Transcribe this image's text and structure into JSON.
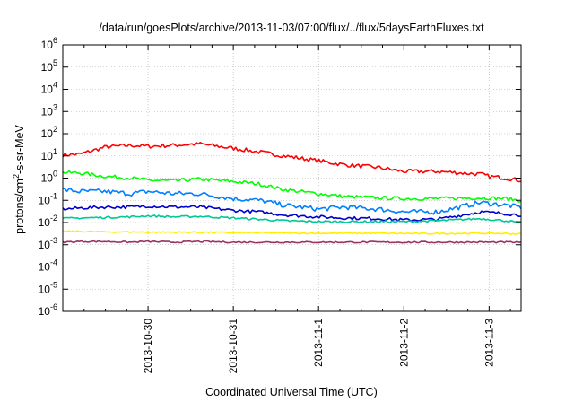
{
  "chart_data": {
    "type": "line",
    "title": "/data/run/goesPlots/archive/2013-11-03/07:00/flux/../flux/5daysEarthFluxes.txt",
    "xlabel": "Coordinated Universal Time (UTC)",
    "ylabel": {
      "prefix": "protons/cm",
      "sup": "2",
      "suffix": "-s-sr-MeV"
    },
    "x_axis": {
      "unit": "day",
      "range": [
        "2013-10-29 00:00",
        "2013-11-03 09:00"
      ],
      "ticks": [
        "2013-10-30",
        "2013-10-31",
        "2013-11-1",
        "2013-11-2",
        "2013-11-3"
      ]
    },
    "y_axis": {
      "scale": "log",
      "range": [
        1e-06,
        1000000.0
      ],
      "tick_base": "10",
      "tick_exponents": [
        "-6",
        "-5",
        "-4",
        "-3",
        "-2",
        "-1",
        "0",
        "1",
        "2",
        "3",
        "4",
        "5",
        "6"
      ]
    },
    "grid": true,
    "series": [
      {
        "color": "#ff0000",
        "x": [
          0,
          0.2,
          0.5,
          0.8,
          1.0,
          1.3,
          1.6,
          2.0,
          2.3,
          2.6,
          3.0,
          3.3,
          3.7,
          4.0,
          4.4,
          4.9,
          5.0,
          5.2,
          5.35
        ],
        "y": [
          11,
          12,
          25,
          30,
          27,
          30,
          35,
          22,
          15,
          10,
          6,
          4,
          3,
          2,
          2,
          1.5,
          1.2,
          1.0,
          0.8
        ]
      },
      {
        "color": "#00ff00",
        "x": [
          0,
          0.2,
          0.5,
          0.8,
          1.0,
          1.3,
          1.6,
          2.0,
          2.3,
          2.6,
          3.0,
          3.3,
          3.7,
          4.0,
          4.4,
          4.9,
          5.2,
          5.35
        ],
        "y": [
          1.8,
          1.7,
          1.2,
          1.0,
          0.8,
          0.75,
          0.9,
          0.7,
          0.55,
          0.3,
          0.2,
          0.15,
          0.13,
          0.12,
          0.12,
          0.13,
          0.12,
          0.1
        ]
      },
      {
        "color": "#0080ff",
        "x": [
          0,
          0.2,
          0.5,
          0.8,
          1.0,
          1.3,
          1.6,
          2.0,
          2.3,
          2.6,
          3.0,
          3.3,
          3.7,
          4.0,
          4.4,
          4.9,
          5.2,
          5.35
        ],
        "y": [
          0.3,
          0.25,
          0.25,
          0.2,
          0.25,
          0.2,
          0.2,
          0.12,
          0.1,
          0.06,
          0.04,
          0.05,
          0.04,
          0.03,
          0.03,
          0.08,
          0.06,
          0.05
        ]
      },
      {
        "color": "#0000cc",
        "x": [
          0,
          0.2,
          0.5,
          0.8,
          1.0,
          1.3,
          1.6,
          2.0,
          2.3,
          2.6,
          3.0,
          3.3,
          3.7,
          4.0,
          4.4,
          4.9,
          5.2,
          5.35
        ],
        "y": [
          0.04,
          0.045,
          0.05,
          0.05,
          0.055,
          0.05,
          0.05,
          0.035,
          0.03,
          0.022,
          0.018,
          0.016,
          0.015,
          0.013,
          0.014,
          0.03,
          0.025,
          0.022
        ]
      },
      {
        "color": "#00c896",
        "x": [
          0,
          0.2,
          0.5,
          0.8,
          1.0,
          1.3,
          1.6,
          2.0,
          2.3,
          2.6,
          3.0,
          3.3,
          3.7,
          4.0,
          4.4,
          4.9,
          5.2,
          5.35
        ],
        "y": [
          0.015,
          0.016,
          0.017,
          0.018,
          0.02,
          0.018,
          0.019,
          0.016,
          0.014,
          0.012,
          0.011,
          0.011,
          0.011,
          0.011,
          0.012,
          0.015,
          0.012,
          0.01
        ]
      },
      {
        "color": "#ffee00",
        "x": [
          0,
          0.2,
          0.5,
          0.8,
          1.0,
          1.3,
          1.6,
          2.0,
          2.3,
          2.6,
          3.0,
          3.3,
          3.7,
          4.0,
          4.4,
          4.9,
          5.2,
          5.35
        ],
        "y": [
          0.004,
          0.004,
          0.0038,
          0.0038,
          0.0037,
          0.0037,
          0.0037,
          0.0035,
          0.0035,
          0.0034,
          0.0033,
          0.0033,
          0.0033,
          0.0032,
          0.0032,
          0.0033,
          0.0032,
          0.0031
        ]
      },
      {
        "color": "#993366",
        "x": [
          0,
          0.2,
          0.5,
          0.8,
          1.0,
          1.3,
          1.6,
          2.0,
          2.3,
          2.6,
          3.0,
          3.3,
          3.7,
          4.0,
          4.4,
          4.9,
          5.2,
          5.35
        ],
        "y": [
          0.0013,
          0.0014,
          0.0014,
          0.0013,
          0.0014,
          0.0013,
          0.0014,
          0.0013,
          0.0013,
          0.0013,
          0.0013,
          0.0013,
          0.0013,
          0.0013,
          0.0013,
          0.0013,
          0.0013,
          0.0013
        ]
      }
    ]
  }
}
